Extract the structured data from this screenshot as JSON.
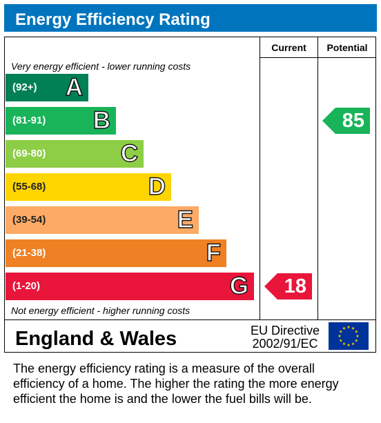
{
  "header": {
    "title": "Energy Efficiency Rating"
  },
  "columns": {
    "current": "Current",
    "potential": "Potential"
  },
  "notes": {
    "top": "Very energy efficient - lower running costs",
    "bottom": "Not energy efficient - higher running costs"
  },
  "chart_data": {
    "type": "bar",
    "title": "Energy Efficiency Rating",
    "bands": [
      {
        "letter": "A",
        "range": "(92+)",
        "color": "#008054"
      },
      {
        "letter": "B",
        "range": "(81-91)",
        "color": "#19b459"
      },
      {
        "letter": "C",
        "range": "(69-80)",
        "color": "#8dce46"
      },
      {
        "letter": "D",
        "range": "(55-68)",
        "color": "#ffd500"
      },
      {
        "letter": "E",
        "range": "(39-54)",
        "color": "#fcaa65"
      },
      {
        "letter": "F",
        "range": "(21-38)",
        "color": "#ef8023"
      },
      {
        "letter": "G",
        "range": "(1-20)",
        "color": "#e9153b"
      }
    ],
    "current": {
      "value": "18",
      "band": "G",
      "color": "#e9153b"
    },
    "potential": {
      "value": "85",
      "band": "B",
      "color": "#19b459"
    }
  },
  "footer": {
    "region": "England & Wales",
    "directive_line1": "EU Directive",
    "directive_line2": "2002/91/EC",
    "flag_colors": {
      "field": "#003399",
      "stars": "#ffcc00"
    }
  },
  "description": {
    "line1": "The energy efficiency rating is a measure of the overall",
    "line2": "efficiency of a home.  The higher the rating the more energy",
    "line3": "efficient the home is and the lower the fuel bills will be."
  }
}
